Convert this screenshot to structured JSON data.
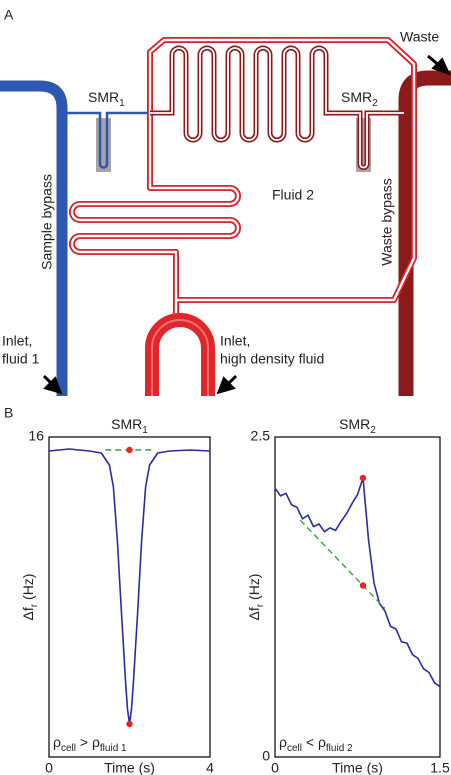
{
  "panel_a": {
    "label": "A",
    "waste": "Waste",
    "smr1": [
      "SMR",
      "1"
    ],
    "smr2": [
      "SMR",
      "2"
    ],
    "fluid2": "Fluid 2",
    "sample_bypass": "Sample bypass",
    "waste_bypass": "Waste bypass",
    "inlet1": [
      "Inlet,",
      "fluid 1"
    ],
    "inlet2": [
      "Inlet,",
      "high density fluid"
    ]
  },
  "panel_b": {
    "label": "B"
  },
  "chart_data": [
    {
      "type": "line",
      "title": [
        "SMR",
        "1"
      ],
      "xlabel": "Time (s)",
      "ylabel": [
        "Δf",
        "r",
        " (Hz)"
      ],
      "annotation": [
        "ρ",
        "cell",
        " > ρ",
        "fluid 1"
      ],
      "x": [
        0,
        0.5,
        1,
        1.3,
        1.5,
        1.6,
        1.7,
        1.8,
        1.9,
        1.95,
        2,
        2.05,
        2.1,
        2.2,
        2.3,
        2.4,
        2.5,
        2.7,
        3,
        3.5,
        4
      ],
      "series": [
        {
          "color": "#2b2ba0",
          "style": "line",
          "values": [
            15.3,
            15.4,
            15.3,
            15.2,
            14.6,
            13.5,
            10.8,
            7.2,
            3.8,
            2.4,
            1.65,
            2.4,
            3.8,
            7.2,
            10.8,
            13.5,
            14.6,
            15.2,
            15.3,
            15.35,
            15.3
          ]
        },
        {
          "color": "#33a833",
          "style": "dashed",
          "x": [
            1.4,
            2.6
          ],
          "values": [
            15.35,
            15.35
          ]
        },
        {
          "color": "#ee2222",
          "style": "markers",
          "x": [
            2,
            2
          ],
          "values": [
            15.35,
            1.65
          ]
        }
      ],
      "xlim": [
        0,
        4
      ],
      "ylim": [
        0,
        16
      ],
      "xticks": [
        0,
        4
      ],
      "yticks": [
        16
      ]
    },
    {
      "type": "line",
      "title": [
        "SMR",
        "2"
      ],
      "xlabel": "Time (s)",
      "ylabel": [
        "Δf",
        "r",
        " (Hz)"
      ],
      "annotation": [
        "ρ",
        "cell",
        " < ρ",
        "fluid 2"
      ],
      "x": [
        0,
        0.05,
        0.1,
        0.15,
        0.2,
        0.25,
        0.3,
        0.35,
        0.4,
        0.45,
        0.5,
        0.55,
        0.6,
        0.65,
        0.7,
        0.75,
        0.8,
        0.85,
        0.9,
        0.95,
        1,
        1.05,
        1.1,
        1.15,
        1.2,
        1.25,
        1.3,
        1.35,
        1.4,
        1.45,
        1.5
      ],
      "series": [
        {
          "color": "#2b2ba0",
          "style": "line",
          "values": [
            2.1,
            2.04,
            2.06,
            1.97,
            1.95,
            1.86,
            1.89,
            1.8,
            1.82,
            1.76,
            1.79,
            1.77,
            1.84,
            1.9,
            1.98,
            2.05,
            2.18,
            1.7,
            1.36,
            1.2,
            1.14,
            1.02,
            1.0,
            0.9,
            0.89,
            0.8,
            0.77,
            0.69,
            0.66,
            0.58,
            0.55
          ]
        },
        {
          "color": "#33a833",
          "style": "dashed",
          "x": [
            0.23,
            1.0
          ],
          "values": [
            1.85,
            1.16
          ]
        },
        {
          "color": "#ee2222",
          "style": "markers",
          "x": [
            0.8,
            0.8
          ],
          "values": [
            2.18,
            1.34
          ]
        }
      ],
      "xlim": [
        0,
        1.5
      ],
      "ylim": [
        0,
        2.5
      ],
      "xticks": [
        0,
        1.5
      ],
      "yticks": [
        0,
        2.5
      ]
    }
  ]
}
